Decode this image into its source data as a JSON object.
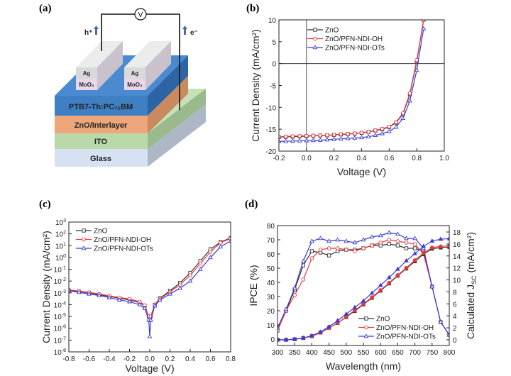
{
  "diagram": {
    "panel": "(a)",
    "voltmeter": "V",
    "hole_label": "h⁺",
    "electron_label": "e⁻",
    "electrode_top": "Ag",
    "electrode_bottom": "MoO₃",
    "active_layer": "PTB7-Th:PC₇₁BM",
    "interlayer": "ZnO/Interlayer",
    "ito": "ITO",
    "glass": "Glass",
    "colors": {
      "active": "#3f7fc4",
      "interlayer": "#eda77a",
      "ito": "#b9d9a9",
      "glass": "#d6e1f1",
      "ag": "#d9d9d9",
      "moo3": "#ead6ec"
    }
  },
  "chart_data": [
    {
      "panel": "(b)",
      "type": "line",
      "xlabel": "Voltage (V)",
      "ylabel": "Current Density (mA/cm²)",
      "xlim": [
        -0.2,
        1.0
      ],
      "ylim": [
        -20,
        10
      ],
      "xticks": [
        -0.2,
        0.0,
        0.2,
        0.4,
        0.6,
        0.8,
        1.0
      ],
      "xtick_labels": [
        "-0.2",
        "0.0",
        "0.2",
        "0.4",
        "0.6",
        "0.8",
        "1.0"
      ],
      "yticks": [
        10,
        5,
        0,
        -5,
        -10,
        -15,
        -20
      ],
      "ytick_labels": [
        "10",
        "5",
        "0",
        "-5",
        "-10",
        "-15",
        "-20"
      ],
      "legend": "top-left",
      "series": [
        {
          "name": "ZnO",
          "color": "#333333",
          "marker": "square",
          "x": [
            -0.2,
            -0.15,
            -0.1,
            -0.05,
            0,
            0.05,
            0.1,
            0.15,
            0.2,
            0.25,
            0.3,
            0.35,
            0.4,
            0.45,
            0.5,
            0.55,
            0.6,
            0.65,
            0.7,
            0.75,
            0.8,
            0.85
          ],
          "y": [
            -16.8,
            -16.75,
            -16.7,
            -16.65,
            -16.6,
            -16.5,
            -16.45,
            -16.4,
            -16.3,
            -16.2,
            -16.1,
            -16.0,
            -15.85,
            -15.6,
            -15.3,
            -15.0,
            -14.5,
            -13.5,
            -11.5,
            -7.0,
            0.5,
            10
          ]
        },
        {
          "name": "ZnO/PFN-NDI-OH",
          "color": "#e8383d",
          "marker": "circle",
          "x": [
            -0.2,
            -0.15,
            -0.1,
            -0.05,
            0,
            0.05,
            0.1,
            0.15,
            0.2,
            0.25,
            0.3,
            0.35,
            0.4,
            0.45,
            0.5,
            0.55,
            0.6,
            0.65,
            0.7,
            0.75,
            0.8,
            0.85
          ],
          "y": [
            -16.7,
            -16.65,
            -16.6,
            -16.55,
            -16.5,
            -16.45,
            -16.4,
            -16.35,
            -16.25,
            -16.15,
            -16.05,
            -15.95,
            -15.8,
            -15.55,
            -15.25,
            -14.9,
            -14.4,
            -13.4,
            -11.3,
            -6.8,
            0.8,
            10
          ]
        },
        {
          "name": "ZnO/PFN-NDI-OTs",
          "color": "#3a3ad8",
          "marker": "triangle",
          "x": [
            -0.2,
            -0.15,
            -0.1,
            -0.05,
            0,
            0.05,
            0.1,
            0.15,
            0.2,
            0.25,
            0.3,
            0.35,
            0.4,
            0.45,
            0.5,
            0.55,
            0.6,
            0.65,
            0.7,
            0.75,
            0.8,
            0.85
          ],
          "y": [
            -17.8,
            -17.75,
            -17.7,
            -17.65,
            -17.6,
            -17.55,
            -17.5,
            -17.4,
            -17.3,
            -17.2,
            -17.1,
            -17.0,
            -16.9,
            -16.7,
            -16.4,
            -16.0,
            -15.5,
            -14.5,
            -12.5,
            -8.5,
            -1.5,
            8.0
          ]
        }
      ]
    },
    {
      "panel": "(c)",
      "type": "line",
      "xlabel": "Voltage (V)",
      "ylabel": "Current Density (mA/cm²)",
      "yscale": "log",
      "xlim": [
        -0.8,
        0.8
      ],
      "ylim": [
        1e-08,
        1000.0
      ],
      "xticks": [
        -0.8,
        -0.6,
        -0.4,
        -0.2,
        0.0,
        0.2,
        0.4,
        0.6,
        0.8
      ],
      "xtick_labels": [
        "-0.8",
        "-0.6",
        "-0.4",
        "-0.2",
        "0.0",
        "0.2",
        "0.4",
        "0.6",
        "0.8"
      ],
      "yticks": [
        1000.0,
        100.0,
        10.0,
        1.0,
        0.1,
        0.01,
        0.001,
        0.0001,
        1e-05,
        1e-06,
        1e-07,
        1e-08
      ],
      "ytick_labels": [
        "10^3",
        "10^2",
        "10^1",
        "10^0",
        "10^-1",
        "10^-2",
        "10^-3",
        "10^-4",
        "10^-5",
        "10^-6",
        "10^-7",
        "10^-8"
      ],
      "legend": "top-left",
      "series": [
        {
          "name": "ZnO",
          "color": "#333333",
          "marker": "square",
          "x": [
            -0.8,
            -0.7,
            -0.6,
            -0.5,
            -0.4,
            -0.3,
            -0.2,
            -0.1,
            -0.05,
            -0.01,
            0,
            0.01,
            0.05,
            0.1,
            0.2,
            0.3,
            0.4,
            0.5,
            0.6,
            0.7,
            0.8
          ],
          "y": [
            0.0016,
            0.0013,
            0.001,
            0.0007,
            0.0005,
            0.00035,
            0.00025,
            0.00015,
            8e-05,
            1e-05,
            5e-06,
            1e-05,
            0.0001,
            0.00035,
            0.0015,
            0.007,
            0.05,
            0.5,
            5,
            20,
            45
          ]
        },
        {
          "name": "ZnO/PFN-NDI-OH",
          "color": "#e8383d",
          "marker": "circle",
          "x": [
            -0.8,
            -0.7,
            -0.6,
            -0.5,
            -0.4,
            -0.3,
            -0.2,
            -0.1,
            -0.05,
            -0.01,
            0,
            0.01,
            0.05,
            0.1,
            0.2,
            0.3,
            0.4,
            0.5,
            0.6,
            0.7,
            0.8
          ],
          "y": [
            0.0018,
            0.0014,
            0.0011,
            0.0008,
            0.00055,
            0.0004,
            0.0003,
            0.00018,
            9e-05,
            1e-05,
            6e-06,
            1e-05,
            0.0001,
            0.00032,
            0.0012,
            0.005,
            0.03,
            0.3,
            3,
            18,
            40
          ]
        },
        {
          "name": "ZnO/PFN-NDI-OTs",
          "color": "#3a3ad8",
          "marker": "triangle",
          "x": [
            -0.8,
            -0.7,
            -0.6,
            -0.5,
            -0.4,
            -0.3,
            -0.2,
            -0.1,
            -0.05,
            -0.01,
            0,
            0.01,
            0.05,
            0.1,
            0.2,
            0.3,
            0.4,
            0.5,
            0.6,
            0.7,
            0.8
          ],
          "y": [
            0.0015,
            0.0011,
            0.0008,
            0.0006,
            0.0004,
            0.00025,
            0.00018,
            0.0001,
            5e-05,
            5e-06,
            2e-07,
            5e-06,
            8e-05,
            0.00025,
            0.0008,
            0.0025,
            0.01,
            0.1,
            1,
            8,
            25
          ]
        }
      ]
    },
    {
      "panel": "(d)",
      "type": "line",
      "xlabel": "Wavelength (nm)",
      "ylabel": "IPCE (%)",
      "ylabel_right_prefix": "Calculated J",
      "ylabel_right_sub": "SC",
      "ylabel_right_suffix": " (mA/cm²)",
      "xlim": [
        300,
        800
      ],
      "ylim": [
        -4.5,
        80
      ],
      "ylim_right": [
        -0.95,
        19.07
      ],
      "xticks": [
        300,
        350,
        400,
        450,
        500,
        550,
        600,
        650,
        700,
        750,
        800
      ],
      "xtick_labels": [
        "300",
        "350",
        "400",
        "450",
        "500",
        "550",
        "600",
        "650",
        "700",
        "750",
        "800"
      ],
      "yticks": [
        0,
        10,
        20,
        30,
        40,
        50,
        60,
        70,
        80
      ],
      "ytick_labels": [
        "0",
        "10",
        "20",
        "30",
        "40",
        "50",
        "60",
        "70",
        "80"
      ],
      "yticks_right": [
        0,
        2,
        4,
        6,
        8,
        10,
        12,
        14,
        16,
        18
      ],
      "ytick_labels_right": [
        "0",
        "2",
        "4",
        "6",
        "8",
        "10",
        "12",
        "14",
        "16",
        "18"
      ],
      "legend": "bottom-right",
      "series": [
        {
          "name": "ZnO",
          "color": "#333333",
          "marker": "square",
          "axis": "left",
          "x": [
            300,
            325,
            350,
            375,
            400,
            425,
            450,
            475,
            500,
            525,
            550,
            575,
            600,
            625,
            650,
            675,
            700,
            725,
            750,
            775,
            800
          ],
          "y": [
            6,
            20,
            35,
            52,
            62,
            61,
            59,
            62,
            63,
            63,
            64,
            66,
            66,
            67,
            66,
            64,
            64,
            62,
            37,
            12,
            3
          ]
        },
        {
          "name": "ZnO/PFN-NDI-OH",
          "color": "#e8383d",
          "marker": "circle",
          "axis": "left",
          "x": [
            300,
            325,
            350,
            375,
            400,
            425,
            450,
            475,
            500,
            525,
            550,
            575,
            600,
            625,
            650,
            675,
            700,
            725,
            750,
            775,
            800
          ],
          "y": [
            6,
            20,
            31,
            42,
            57,
            63,
            64,
            64,
            63,
            62,
            64,
            66,
            68,
            70,
            69,
            68,
            67,
            60,
            37,
            12,
            3
          ]
        },
        {
          "name": "ZnO/PFN-NDI-OTs",
          "color": "#3a3ad8",
          "marker": "triangle",
          "axis": "left",
          "x": [
            300,
            325,
            350,
            375,
            400,
            425,
            450,
            475,
            500,
            525,
            550,
            575,
            600,
            625,
            650,
            675,
            700,
            725,
            750,
            775,
            800
          ],
          "y": [
            8,
            21,
            36,
            55,
            69,
            71,
            69,
            70,
            69,
            68,
            70,
            72,
            73,
            75,
            74,
            71,
            71,
            64,
            37,
            12,
            3
          ]
        },
        {
          "name": "ZnO Jsc",
          "color": "#333333",
          "marker": "square-filled",
          "axis": "right",
          "x": [
            300,
            325,
            350,
            375,
            400,
            425,
            450,
            475,
            500,
            525,
            550,
            575,
            600,
            625,
            650,
            675,
            700,
            725,
            750,
            775,
            800
          ],
          "y": [
            0,
            0,
            0.1,
            0.3,
            0.6,
            1.2,
            2.0,
            2.8,
            3.8,
            4.8,
            5.9,
            7.0,
            8.2,
            9.4,
            10.7,
            11.9,
            13.1,
            14.3,
            15.2,
            15.4,
            15.5
          ]
        },
        {
          "name": "ZnO/PFN-NDI-OH Jsc",
          "color": "#e8383d",
          "marker": "circle-filled",
          "axis": "right",
          "x": [
            300,
            325,
            350,
            375,
            400,
            425,
            450,
            475,
            500,
            525,
            550,
            575,
            600,
            625,
            650,
            675,
            700,
            725,
            750,
            775,
            800
          ],
          "y": [
            0,
            0,
            0.1,
            0.3,
            0.6,
            1.2,
            2.0,
            2.8,
            3.9,
            4.9,
            6.0,
            7.1,
            8.3,
            9.5,
            10.8,
            12.0,
            13.3,
            14.5,
            15.4,
            15.6,
            15.7
          ]
        },
        {
          "name": "ZnO/PFN-NDI-OTs Jsc",
          "color": "#3a3ad8",
          "marker": "triangle-filled",
          "axis": "right",
          "x": [
            300,
            325,
            350,
            375,
            400,
            425,
            450,
            475,
            500,
            525,
            550,
            575,
            600,
            625,
            650,
            675,
            700,
            725,
            750,
            775,
            800
          ],
          "y": [
            0,
            0,
            0.1,
            0.3,
            0.7,
            1.3,
            2.2,
            3.2,
            4.3,
            5.4,
            6.5,
            7.8,
            9.1,
            10.4,
            11.8,
            13.2,
            14.4,
            15.6,
            16.5,
            16.8,
            16.9
          ]
        }
      ],
      "legend_entries": [
        "ZnO",
        "ZnO/PFN-NDI-OH",
        "ZnO/PFN-NDI-OTs"
      ]
    }
  ]
}
